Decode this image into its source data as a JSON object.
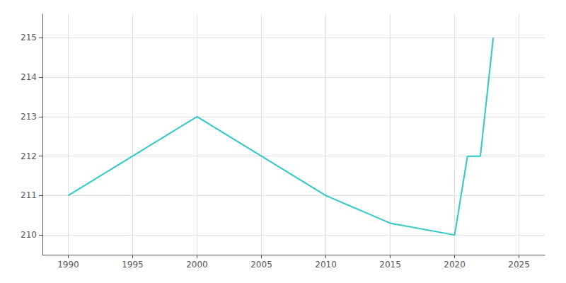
{
  "chart_data": {
    "type": "line",
    "x": [
      1990,
      1995,
      2000,
      2005,
      2010,
      2015,
      2020,
      2021,
      2022,
      2023
    ],
    "values": [
      211,
      212,
      213,
      212,
      211,
      210.3,
      210,
      212,
      212,
      215
    ],
    "color": "#2ec8c8",
    "xlim": [
      1988,
      2027
    ],
    "ylim": [
      209.5,
      215.6
    ],
    "xticks": [
      1990,
      1995,
      2000,
      2005,
      2010,
      2015,
      2020,
      2025
    ],
    "yticks": [
      210,
      211,
      212,
      213,
      214,
      215
    ],
    "grid": true
  }
}
